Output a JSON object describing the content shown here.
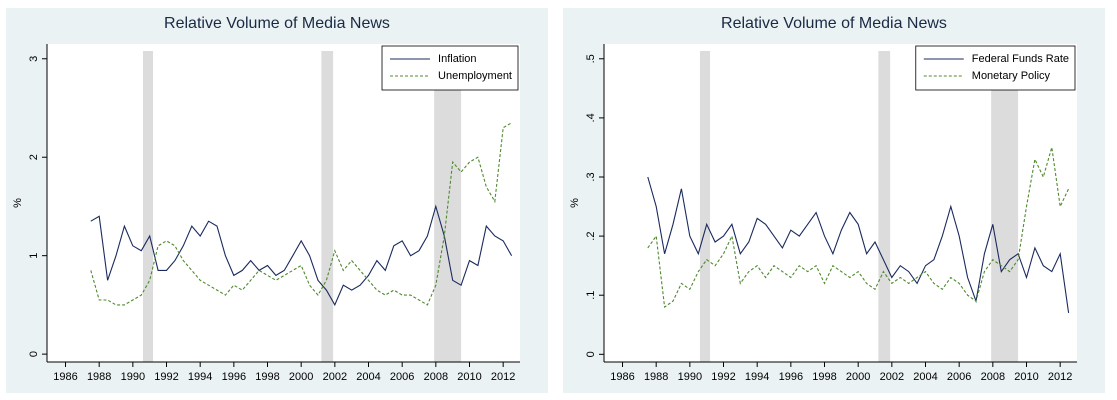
{
  "chart_data": [
    {
      "type": "line",
      "title": "Relative Volume of Media News",
      "ylabel": "%",
      "x": [
        1987.5,
        1988,
        1988.5,
        1989,
        1989.5,
        1990,
        1990.5,
        1991,
        1991.5,
        1992,
        1992.5,
        1993,
        1993.5,
        1994,
        1994.5,
        1995,
        1995.5,
        1996,
        1996.5,
        1997,
        1997.5,
        1998,
        1998.5,
        1999,
        1999.5,
        2000,
        2000.5,
        2001,
        2001.5,
        2002,
        2002.5,
        2003,
        2003.5,
        2004,
        2004.5,
        2005,
        2005.5,
        2006,
        2006.5,
        2007,
        2007.5,
        2008,
        2008.5,
        2009,
        2009.5,
        2010,
        2010.5,
        2011,
        2011.5,
        2012,
        2012.5
      ],
      "series": [
        {
          "name": "Inflation",
          "color": "#1a2a5e",
          "dashed": false,
          "values": [
            1.35,
            1.4,
            0.75,
            1.0,
            1.3,
            1.1,
            1.05,
            1.2,
            0.85,
            0.85,
            0.95,
            1.1,
            1.3,
            1.2,
            1.35,
            1.3,
            1.0,
            0.8,
            0.85,
            0.95,
            0.85,
            0.9,
            0.8,
            0.85,
            1.0,
            1.15,
            1.0,
            0.75,
            0.65,
            0.5,
            0.7,
            0.65,
            0.7,
            0.8,
            0.95,
            0.85,
            1.1,
            1.15,
            1.0,
            1.05,
            1.2,
            1.5,
            1.2,
            0.75,
            0.7,
            0.95,
            0.9,
            1.3,
            1.2,
            1.15,
            1.0
          ]
        },
        {
          "name": "Unemployment",
          "color": "#4e8a2e",
          "dashed": true,
          "values": [
            0.85,
            0.55,
            0.55,
            0.5,
            0.5,
            0.55,
            0.6,
            0.75,
            1.1,
            1.15,
            1.1,
            0.95,
            0.85,
            0.75,
            0.7,
            0.65,
            0.6,
            0.7,
            0.65,
            0.75,
            0.85,
            0.8,
            0.75,
            0.8,
            0.85,
            0.9,
            0.7,
            0.6,
            0.75,
            1.05,
            0.85,
            0.95,
            0.85,
            0.75,
            0.65,
            0.6,
            0.65,
            0.6,
            0.6,
            0.55,
            0.5,
            0.7,
            1.2,
            1.95,
            1.85,
            1.95,
            2.0,
            1.7,
            1.55,
            2.3,
            2.35
          ]
        }
      ],
      "shaded_regions": [
        [
          1990.6,
          1991.2
        ],
        [
          2001.2,
          2001.9
        ],
        [
          2007.9,
          2009.5
        ]
      ],
      "shade_color": "#dcdcdc",
      "xlim": [
        1984.9,
        2013.0
      ],
      "xticks": [
        1986,
        1988,
        1990,
        1992,
        1994,
        1996,
        1998,
        2000,
        2002,
        2004,
        2006,
        2008,
        2010,
        2012
      ],
      "ylim": [
        -0.08,
        3.15
      ],
      "yticks": [
        0,
        1,
        2,
        3
      ],
      "legend": "top right"
    },
    {
      "type": "line",
      "title": "Relative Volume of Media News",
      "ylabel": "%",
      "x": [
        1987.5,
        1988,
        1988.5,
        1989,
        1989.5,
        1990,
        1990.5,
        1991,
        1991.5,
        1992,
        1992.5,
        1993,
        1993.5,
        1994,
        1994.5,
        1995,
        1995.5,
        1996,
        1996.5,
        1997,
        1997.5,
        1998,
        1998.5,
        1999,
        1999.5,
        2000,
        2000.5,
        2001,
        2001.5,
        2002,
        2002.5,
        2003,
        2003.5,
        2004,
        2004.5,
        2005,
        2005.5,
        2006,
        2006.5,
        2007,
        2007.5,
        2008,
        2008.5,
        2009,
        2009.5,
        2010,
        2010.5,
        2011,
        2011.5,
        2012,
        2012.5
      ],
      "series": [
        {
          "name": "Federal Funds Rate",
          "color": "#1a2a5e",
          "dashed": false,
          "values": [
            0.3,
            0.25,
            0.17,
            0.22,
            0.28,
            0.2,
            0.17,
            0.22,
            0.19,
            0.2,
            0.22,
            0.17,
            0.19,
            0.23,
            0.22,
            0.2,
            0.18,
            0.21,
            0.2,
            0.22,
            0.24,
            0.2,
            0.17,
            0.21,
            0.24,
            0.22,
            0.17,
            0.19,
            0.16,
            0.13,
            0.15,
            0.14,
            0.12,
            0.15,
            0.16,
            0.2,
            0.25,
            0.2,
            0.13,
            0.09,
            0.17,
            0.22,
            0.14,
            0.16,
            0.17,
            0.13,
            0.18,
            0.15,
            0.14,
            0.17,
            0.07
          ]
        },
        {
          "name": "Monetary Policy",
          "color": "#4e8a2e",
          "dashed": true,
          "values": [
            0.18,
            0.2,
            0.08,
            0.09,
            0.12,
            0.11,
            0.14,
            0.16,
            0.15,
            0.17,
            0.2,
            0.12,
            0.14,
            0.15,
            0.13,
            0.15,
            0.14,
            0.13,
            0.15,
            0.14,
            0.15,
            0.12,
            0.15,
            0.14,
            0.13,
            0.14,
            0.12,
            0.11,
            0.14,
            0.12,
            0.13,
            0.12,
            0.13,
            0.14,
            0.12,
            0.11,
            0.13,
            0.12,
            0.1,
            0.09,
            0.14,
            0.16,
            0.15,
            0.14,
            0.16,
            0.25,
            0.33,
            0.3,
            0.35,
            0.25,
            0.28
          ]
        }
      ],
      "shaded_regions": [
        [
          1990.6,
          1991.2
        ],
        [
          2001.2,
          2001.9
        ],
        [
          2007.9,
          2009.5
        ]
      ],
      "shade_color": "#dcdcdc",
      "xlim": [
        1984.9,
        2013.0
      ],
      "xticks": [
        1986,
        1988,
        1990,
        1992,
        1994,
        1996,
        1998,
        2000,
        2002,
        2004,
        2006,
        2008,
        2010,
        2012
      ],
      "ylim": [
        -0.013,
        0.525
      ],
      "yticks": [
        0,
        {
          "value": 0.1,
          "label": ".1"
        },
        {
          "value": 0.2,
          "label": ".2"
        },
        {
          "value": 0.3,
          "label": ".3"
        },
        {
          "value": 0.4,
          "label": ".4"
        },
        {
          "value": 0.5,
          "label": ".5"
        }
      ],
      "legend": "top right"
    }
  ]
}
